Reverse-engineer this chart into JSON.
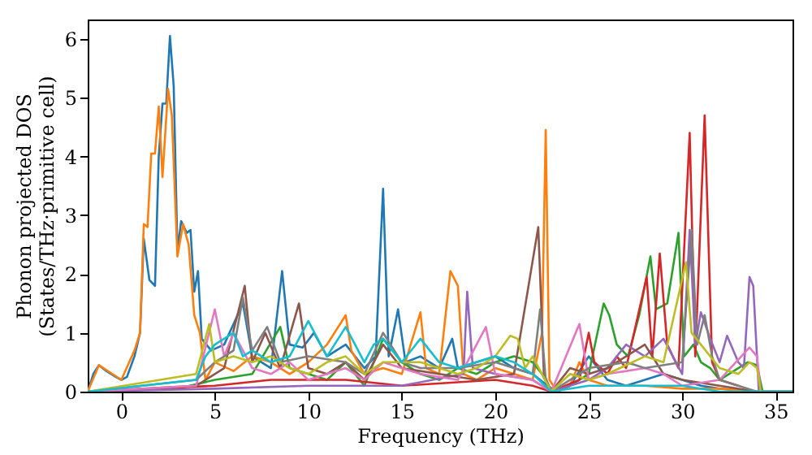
{
  "chart_data": {
    "type": "line",
    "xlabel": "Frequency (THz)",
    "ylabel": "Phonon projected DOS\n(States/THz·primitive cell)",
    "xlim": [
      -1.8,
      35.9
    ],
    "ylim": [
      0,
      6.33
    ],
    "xticks": [
      0,
      5,
      10,
      15,
      20,
      25,
      30,
      35
    ],
    "yticks": [
      0,
      1,
      2,
      3,
      4,
      5,
      6
    ],
    "grid": false,
    "legend": false,
    "marker": "none",
    "line_style": "solid",
    "series": [
      {
        "color": "#1f77b4",
        "x": [
          -1.8,
          -1.5,
          -1.2,
          -0.8,
          -0.3,
          0,
          0.3,
          0.7,
          1.0,
          1.2,
          1.5,
          1.8,
          2.0,
          2.2,
          2.4,
          2.6,
          2.8,
          3.0,
          3.2,
          3.5,
          3.7,
          3.9,
          4.1,
          4.3,
          4.8,
          5.5,
          6.5,
          7,
          8,
          8.6,
          9,
          9.7,
          10.3,
          11,
          12,
          13,
          13.6,
          14,
          14.3,
          14.8,
          15.2,
          16,
          17,
          17.7,
          18,
          19,
          20,
          21,
          22,
          22.8,
          23.3,
          24,
          25,
          26,
          27,
          28,
          29,
          30,
          31,
          32,
          34,
          35.9
        ],
        "values": [
          0,
          0.3,
          0.45,
          0.35,
          0.25,
          0.2,
          0.25,
          0.6,
          1.0,
          2.6,
          1.9,
          1.8,
          4.0,
          4.9,
          4.9,
          6.05,
          5.2,
          2.4,
          2.9,
          2.7,
          2.75,
          1.7,
          2.05,
          0.9,
          0.7,
          0.8,
          1.5,
          0.6,
          0.4,
          2.05,
          0.8,
          0.75,
          1.0,
          0.6,
          0.8,
          0.4,
          0.6,
          3.45,
          0.6,
          1.4,
          0.5,
          0.6,
          0.4,
          0.9,
          0.4,
          0.5,
          0.6,
          0.4,
          0.3,
          0.1,
          0,
          0.1,
          0.6,
          0.2,
          0.1,
          0.2,
          0.3,
          0.2,
          0.1,
          0.05,
          0,
          0
        ]
      },
      {
        "color": "#ff7f0e",
        "x": [
          -1.8,
          -1.2,
          0,
          0.7,
          1.0,
          1.2,
          1.4,
          1.6,
          1.8,
          2.0,
          2.2,
          2.5,
          2.7,
          3.0,
          3.3,
          3.6,
          3.9,
          4.2,
          4.5,
          5,
          6,
          7,
          8,
          9,
          10,
          11,
          12,
          12.3,
          13,
          14,
          15,
          16,
          16.3,
          17,
          17.6,
          18,
          18.3,
          19,
          20,
          21,
          22,
          22.5,
          22.7,
          22.9,
          23.3,
          24,
          24.5,
          25,
          26,
          28,
          30,
          32,
          34,
          35.9
        ],
        "values": [
          0,
          0.45,
          0.2,
          0.7,
          1.0,
          2.85,
          2.8,
          4.05,
          4.05,
          4.85,
          3.65,
          5.15,
          4.7,
          2.3,
          2.85,
          2.5,
          1.3,
          1.0,
          0.2,
          0.5,
          0.35,
          0.6,
          0.5,
          0.3,
          0.5,
          0.8,
          1.3,
          0.7,
          0.3,
          0.4,
          0.3,
          1.35,
          0.4,
          0.3,
          2.05,
          1.8,
          0.3,
          0.2,
          0.4,
          0.3,
          0.2,
          1.0,
          4.45,
          0.2,
          0,
          0.1,
          0.5,
          0.2,
          0.1,
          0.1,
          0.05,
          0.05,
          0,
          0
        ]
      },
      {
        "color": "#2ca02c",
        "x": [
          -1.8,
          3,
          5,
          7,
          8.5,
          9,
          10,
          11,
          12,
          13,
          14,
          15,
          16,
          17,
          18,
          19,
          20,
          21,
          22,
          22.5,
          23,
          24,
          25,
          25.8,
          26.1,
          26.5,
          27.1,
          27.7,
          28.3,
          28.6,
          29.2,
          29.8,
          30.1,
          30.6,
          31,
          31.5,
          32,
          33.5,
          34,
          34.3,
          35.9
        ],
        "values": [
          0,
          0.05,
          0.2,
          0.3,
          1.1,
          0.4,
          0.3,
          0.2,
          0.5,
          0.1,
          0.9,
          0.5,
          0.3,
          0.2,
          0.4,
          0.3,
          0.5,
          0.6,
          0.5,
          0.3,
          0,
          0.1,
          0.3,
          1.5,
          1.3,
          0.8,
          0.6,
          1.3,
          2.3,
          1.4,
          1.5,
          2.7,
          0.6,
          0.8,
          0.5,
          0.4,
          0.2,
          0.5,
          0.45,
          0,
          0
        ]
      },
      {
        "color": "#d62728",
        "x": [
          -1.8,
          5,
          8,
          10,
          12,
          15,
          20,
          22,
          23,
          24.5,
          25,
          25.3,
          26,
          26.5,
          27,
          28.1,
          28.4,
          28.8,
          29.2,
          29.8,
          30.4,
          30.7,
          31.2,
          31.6,
          32,
          33
        ],
        "values": [
          0,
          0.1,
          0.2,
          0.2,
          0.2,
          0.1,
          0.2,
          0.1,
          0,
          0.2,
          1.0,
          0.5,
          0.3,
          0.6,
          0.4,
          1.95,
          0.6,
          2.35,
          0.8,
          0.4,
          4.4,
          0.6,
          4.7,
          0.5,
          0.2,
          0.1
        ]
      },
      {
        "color": "#9467bd",
        "x": [
          -1.8,
          5,
          10,
          15,
          18.3,
          18.5,
          18.8,
          20,
          22,
          23,
          25,
          26,
          27,
          28,
          29,
          30,
          30.4,
          30.7,
          31,
          31.5,
          32,
          32.4,
          33,
          33.3,
          33.6,
          33.8,
          34.1,
          35.9
        ],
        "values": [
          0,
          0.05,
          0.1,
          0.1,
          0.3,
          1.7,
          0.4,
          0.3,
          0.2,
          0,
          0.2,
          0.4,
          0.8,
          0.6,
          0.9,
          0.3,
          2.75,
          0.8,
          1.35,
          0.9,
          0.5,
          0.95,
          0.5,
          0.4,
          1.95,
          1.8,
          0,
          0
        ]
      },
      {
        "color": "#8c564b",
        "x": [
          -1.8,
          4,
          5.5,
          6.6,
          7,
          7.7,
          8.5,
          9.5,
          10,
          11,
          12,
          13,
          14,
          15,
          17,
          19,
          21,
          22.3,
          22.6,
          23,
          24,
          25,
          26,
          28,
          29,
          30,
          32,
          34,
          35.9
        ],
        "values": [
          0,
          0.1,
          0.4,
          1.8,
          0.5,
          1.0,
          0.4,
          1.5,
          0.4,
          0.3,
          0.5,
          0.2,
          0.8,
          0.4,
          0.3,
          0.2,
          0.3,
          2.8,
          0.3,
          0,
          0.4,
          0.3,
          0.4,
          0.8,
          0.3,
          0.2,
          0.1,
          0,
          0
        ]
      },
      {
        "color": "#e377c2",
        "x": [
          -1.8,
          4,
          5,
          5.5,
          6,
          7,
          8,
          9,
          10,
          11,
          12,
          13,
          14,
          16,
          18,
          19.5,
          20,
          22,
          23,
          24.5,
          25,
          26,
          28,
          29,
          30,
          32,
          33.6,
          34,
          34.2,
          35.9
        ],
        "values": [
          0,
          0.1,
          1.4,
          0.6,
          1.0,
          0.4,
          0.3,
          0.5,
          0.2,
          0.3,
          0.4,
          0.2,
          0.5,
          0.3,
          0.2,
          1.1,
          0.3,
          0.2,
          0,
          1.15,
          0.2,
          0.3,
          0.4,
          0.3,
          0.1,
          0.2,
          0.75,
          0.6,
          0,
          0
        ]
      },
      {
        "color": "#7f7f7f",
        "x": [
          -1.8,
          4,
          5,
          6,
          6.5,
          7,
          7.8,
          8.5,
          10,
          12,
          13,
          14,
          15,
          16,
          18,
          20,
          22,
          22.4,
          22.7,
          23,
          24,
          25,
          27,
          28,
          30,
          30.5,
          30.8,
          31.2,
          31.6,
          32,
          34,
          35.9
        ],
        "values": [
          0,
          0.2,
          0.5,
          0.7,
          1.6,
          0.7,
          1.1,
          0.5,
          0.6,
          0.5,
          0.3,
          1.0,
          0.5,
          0.4,
          0.4,
          0.5,
          0.3,
          1.4,
          0.2,
          0,
          0.2,
          0.4,
          0.5,
          0.4,
          0.5,
          2.75,
          0.8,
          1.3,
          0.6,
          0.2,
          0,
          0
        ]
      },
      {
        "color": "#bcbd22",
        "x": [
          -1.8,
          4,
          4.7,
          5,
          6,
          7,
          8,
          9,
          10,
          11,
          12,
          13,
          14,
          15,
          16,
          17,
          18,
          19,
          20,
          20.8,
          21.2,
          21.6,
          22,
          22.5,
          23,
          24,
          25,
          26,
          28,
          29,
          30.2,
          30.5,
          31,
          32,
          33,
          33.6,
          34,
          34.2,
          35.9
        ],
        "values": [
          0,
          0.3,
          1.15,
          0.5,
          0.6,
          0.5,
          0.6,
          0.4,
          0.3,
          0.5,
          0.6,
          0.3,
          0.5,
          0.5,
          0.5,
          0.4,
          0.3,
          0.4,
          0.6,
          0.95,
          0.9,
          0.4,
          0.6,
          0.3,
          0,
          0.3,
          0.2,
          0.3,
          0.6,
          0.5,
          2.2,
          1.0,
          0.8,
          0.4,
          0.3,
          0.5,
          0.4,
          0,
          0
        ]
      },
      {
        "color": "#17becf",
        "x": [
          -1.8,
          4,
          4.5,
          5,
          6,
          6.5,
          7,
          8,
          9,
          10,
          11,
          12,
          13,
          13.5,
          14,
          15,
          16,
          17,
          18,
          19,
          20,
          21,
          22,
          23,
          25,
          27,
          30,
          32,
          35.9
        ],
        "values": [
          0,
          0.2,
          0.6,
          0.8,
          1.0,
          0.6,
          0.7,
          0.5,
          0.6,
          1.2,
          0.6,
          1.1,
          0.5,
          0.8,
          0.9,
          0.5,
          0.9,
          0.5,
          0.4,
          0.5,
          0.6,
          0.5,
          0.3,
          0,
          0.1,
          0.1,
          0.1,
          0,
          0
        ]
      }
    ]
  }
}
